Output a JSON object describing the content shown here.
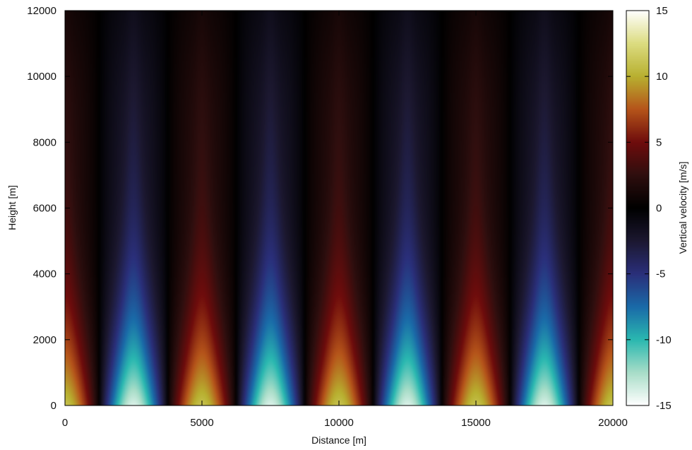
{
  "chart_data": {
    "type": "heatmap",
    "title": "",
    "xlabel": "Distance [m]",
    "ylabel": "Height [m]",
    "colorbar_label": "Vertical velocity [m/s]",
    "xlim": [
      0,
      20000
    ],
    "ylim": [
      0,
      12000
    ],
    "clim": [
      -15,
      15
    ],
    "x_ticks": [
      0,
      5000,
      10000,
      15000,
      20000
    ],
    "x_tick_labels": [
      "0",
      "5000",
      "10000",
      "15000",
      "20000"
    ],
    "y_ticks": [
      0,
      2000,
      4000,
      6000,
      8000,
      10000,
      12000
    ],
    "y_tick_labels": [
      "0",
      "2000",
      "4000",
      "6000",
      "8000",
      "10000",
      "12000"
    ],
    "colorbar_ticks": [
      -15,
      -10,
      -5,
      0,
      5,
      10,
      15
    ],
    "colorbar_tick_labels": [
      "-15",
      "-10",
      "-5",
      "0",
      "5",
      "10",
      "15"
    ],
    "field": {
      "description": "periodic vertical velocity pattern, alternating updraft and downdraft columns",
      "wavelength_m": 5000,
      "updraft_centers_m": [
        0,
        5000,
        10000,
        15000,
        20000
      ],
      "downdraft_centers_m": [
        2500,
        7500,
        12500,
        17500
      ],
      "max_updraft_m_s": 11,
      "max_downdraft_m_s": -14,
      "surface_value_range_m_s": [
        -14,
        11
      ]
    },
    "colormap": [
      {
        "v": -15,
        "color": "#ffffff"
      },
      {
        "v": -12.5,
        "color": "#a8ddc8"
      },
      {
        "v": -10,
        "color": "#2ab8b0"
      },
      {
        "v": -7.5,
        "color": "#1a6aa8"
      },
      {
        "v": -5,
        "color": "#2a2f7a"
      },
      {
        "v": -2.5,
        "color": "#1c1830"
      },
      {
        "v": 0,
        "color": "#000000"
      },
      {
        "v": 2.5,
        "color": "#2e0e0e"
      },
      {
        "v": 5,
        "color": "#6e0c0c"
      },
      {
        "v": 7.5,
        "color": "#b5541a"
      },
      {
        "v": 10,
        "color": "#b8b030"
      },
      {
        "v": 12.5,
        "color": "#dcdc80"
      },
      {
        "v": 15,
        "color": "#ffffff"
      }
    ]
  }
}
